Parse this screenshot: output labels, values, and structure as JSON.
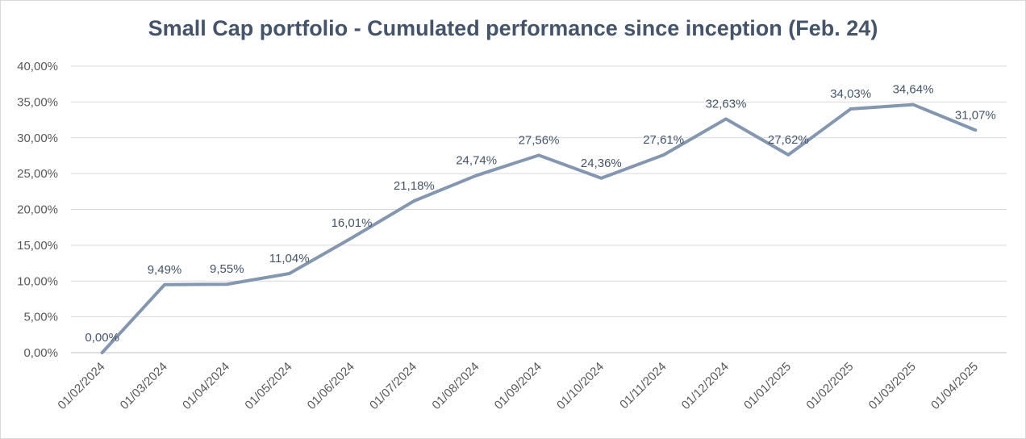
{
  "chart_data": {
    "type": "line",
    "title": "Small Cap portfolio - Cumulated performance since inception (Feb. 24)",
    "categories": [
      "01/02/2024",
      "01/03/2024",
      "01/04/2024",
      "01/05/2024",
      "01/06/2024",
      "01/07/2024",
      "01/08/2024",
      "01/09/2024",
      "01/10/2024",
      "01/11/2024",
      "01/12/2024",
      "01/01/2025",
      "01/02/2025",
      "01/03/2025",
      "01/04/2025"
    ],
    "series": [
      {
        "values": [
          0.0,
          9.49,
          9.55,
          11.04,
          16.01,
          21.18,
          24.74,
          27.56,
          24.36,
          27.61,
          32.63,
          27.62,
          34.03,
          34.64,
          31.07
        ],
        "labels": [
          "0,00%",
          "9,49%",
          "9,55%",
          "11,04%",
          "16,01%",
          "21,18%",
          "24,74%",
          "27,56%",
          "24,36%",
          "27,61%",
          "32,63%",
          "27,62%",
          "34,03%",
          "34,64%",
          "31,07%"
        ],
        "color": "#8497b0"
      }
    ],
    "yticks": [
      "0,00%",
      "5,00%",
      "10,00%",
      "15,00%",
      "20,00%",
      "25,00%",
      "30,00%",
      "35,00%",
      "40,00%"
    ],
    "ylim": [
      0,
      40
    ],
    "grid": true,
    "legend": "none",
    "xlabel": "",
    "ylabel": ""
  }
}
